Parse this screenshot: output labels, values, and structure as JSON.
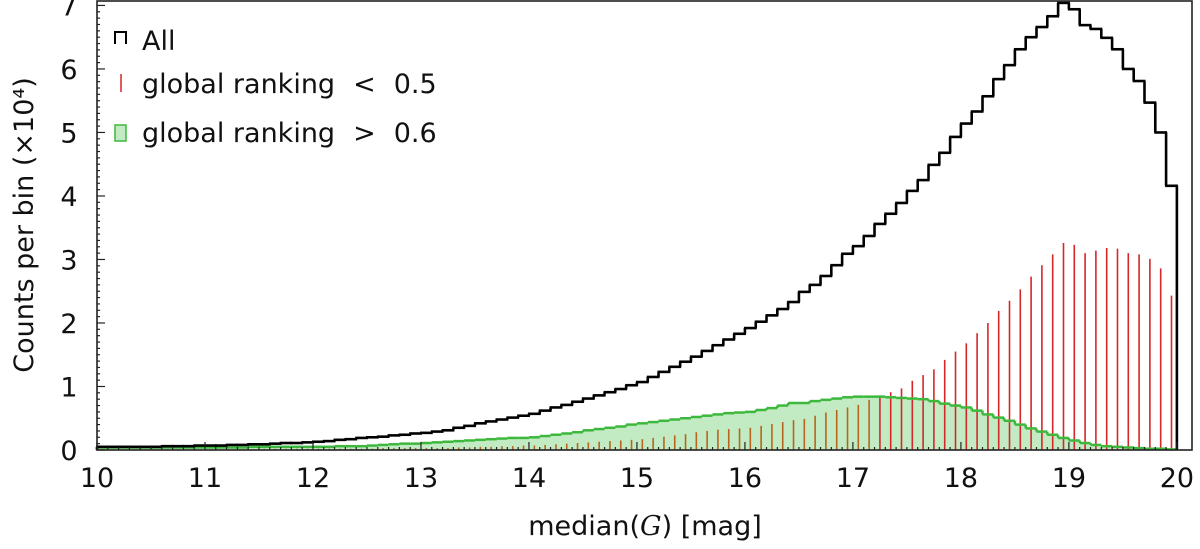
{
  "chart_data": {
    "type": "histogram",
    "xlabel_parts": [
      "median(",
      "G",
      ") [mag]"
    ],
    "ylabel": "Counts per bin (×10⁴)",
    "xlim": [
      10,
      20.14
    ],
    "ylim": [
      0,
      7.07
    ],
    "bin_width": 0.1,
    "bin_start": 10.0,
    "x_ticks": [
      "10",
      "11",
      "12",
      "13",
      "14",
      "15",
      "16",
      "17",
      "18",
      "19",
      "20"
    ],
    "y_ticks": [
      "0",
      "1",
      "2",
      "3",
      "4",
      "5",
      "6",
      "7"
    ],
    "legend_position": "top-left",
    "series": [
      {
        "name": "All",
        "style": "step",
        "color": "#000000",
        "values": [
          0.05,
          0.05,
          0.05,
          0.05,
          0.05,
          0.05,
          0.06,
          0.06,
          0.06,
          0.07,
          0.07,
          0.07,
          0.08,
          0.08,
          0.09,
          0.09,
          0.1,
          0.11,
          0.11,
          0.12,
          0.13,
          0.14,
          0.16,
          0.17,
          0.19,
          0.2,
          0.21,
          0.23,
          0.24,
          0.26,
          0.27,
          0.29,
          0.31,
          0.35,
          0.38,
          0.42,
          0.45,
          0.48,
          0.51,
          0.54,
          0.57,
          0.62,
          0.67,
          0.71,
          0.76,
          0.81,
          0.86,
          0.91,
          0.96,
          1.02,
          1.07,
          1.15,
          1.23,
          1.31,
          1.39,
          1.47,
          1.56,
          1.65,
          1.74,
          1.83,
          1.92,
          2.02,
          2.12,
          2.22,
          2.33,
          2.49,
          2.6,
          2.74,
          2.91,
          3.09,
          3.21,
          3.37,
          3.56,
          3.72,
          3.89,
          4.08,
          4.25,
          4.49,
          4.68,
          4.93,
          5.14,
          5.33,
          5.57,
          5.84,
          6.06,
          6.31,
          6.5,
          6.66,
          6.83,
          7.04,
          6.94,
          6.69,
          6.63,
          6.49,
          6.31,
          6.0,
          5.81,
          5.47,
          5.0,
          4.16
        ]
      },
      {
        "name": "global ranking < 0.5",
        "legend_parts": [
          "global ranking",
          "<",
          "0.5"
        ],
        "style": "needle",
        "color": "#d62728",
        "values": [
          0.01,
          0.01,
          0.01,
          0.01,
          0.01,
          0.01,
          0.01,
          0.01,
          0.01,
          0.01,
          0.01,
          0.01,
          0.01,
          0.01,
          0.01,
          0.02,
          0.02,
          0.02,
          0.02,
          0.02,
          0.02,
          0.02,
          0.02,
          0.02,
          0.02,
          0.02,
          0.03,
          0.03,
          0.03,
          0.03,
          0.03,
          0.03,
          0.03,
          0.04,
          0.04,
          0.05,
          0.05,
          0.06,
          0.06,
          0.07,
          0.07,
          0.08,
          0.09,
          0.1,
          0.11,
          0.12,
          0.13,
          0.14,
          0.15,
          0.16,
          0.17,
          0.19,
          0.21,
          0.23,
          0.25,
          0.28,
          0.3,
          0.32,
          0.33,
          0.34,
          0.35,
          0.38,
          0.41,
          0.44,
          0.47,
          0.49,
          0.54,
          0.59,
          0.63,
          0.67,
          0.71,
          0.79,
          0.86,
          0.91,
          0.97,
          1.09,
          1.18,
          1.27,
          1.42,
          1.55,
          1.68,
          1.84,
          2.0,
          2.19,
          2.35,
          2.53,
          2.73,
          2.91,
          3.08,
          3.26,
          3.23,
          3.1,
          3.14,
          3.18,
          3.17,
          3.1,
          3.08,
          3.01,
          2.86,
          2.43
        ]
      },
      {
        "name": "global ranking > 0.6",
        "legend_parts": [
          "global ranking",
          ">",
          "0.6"
        ],
        "style": "filled-step",
        "color": "#3cb83c",
        "fill": "#c3ebc3",
        "values": [
          0.04,
          0.04,
          0.04,
          0.04,
          0.04,
          0.04,
          0.04,
          0.04,
          0.04,
          0.04,
          0.04,
          0.04,
          0.04,
          0.04,
          0.05,
          0.05,
          0.05,
          0.05,
          0.05,
          0.05,
          0.05,
          0.05,
          0.06,
          0.06,
          0.06,
          0.07,
          0.08,
          0.09,
          0.1,
          0.1,
          0.11,
          0.12,
          0.13,
          0.14,
          0.15,
          0.16,
          0.17,
          0.18,
          0.19,
          0.19,
          0.2,
          0.22,
          0.24,
          0.26,
          0.28,
          0.31,
          0.33,
          0.35,
          0.37,
          0.4,
          0.42,
          0.44,
          0.46,
          0.48,
          0.5,
          0.52,
          0.54,
          0.56,
          0.58,
          0.59,
          0.6,
          0.63,
          0.66,
          0.7,
          0.74,
          0.74,
          0.77,
          0.79,
          0.81,
          0.83,
          0.84,
          0.84,
          0.84,
          0.83,
          0.82,
          0.81,
          0.8,
          0.77,
          0.73,
          0.7,
          0.67,
          0.62,
          0.56,
          0.51,
          0.46,
          0.4,
          0.34,
          0.29,
          0.24,
          0.19,
          0.15,
          0.11,
          0.08,
          0.06,
          0.05,
          0.04,
          0.03,
          0.02,
          0.02,
          0.01
        ]
      }
    ]
  }
}
